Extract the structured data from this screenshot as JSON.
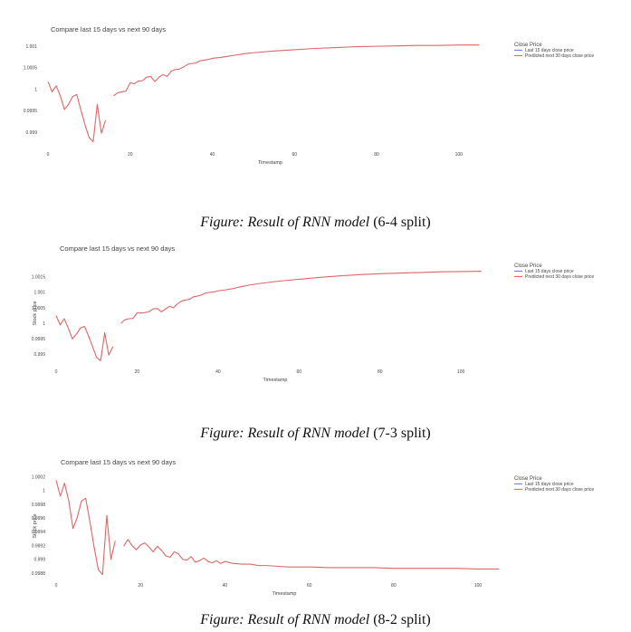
{
  "colors": {
    "line": "#e06666",
    "legend_last15": "#636efa",
    "legend_predicted": "#ef553b",
    "text": "#444444"
  },
  "figures": [
    {
      "caption": {
        "italic": "Figure: Result of RNN model",
        "plain": " (6-4 split)"
      },
      "chart_data": {
        "type": "line",
        "title": "Compare last 15 days vs next 90 days",
        "xlabel": "Timestamp",
        "ylabel": "",
        "xlim": [
          0,
          106
        ],
        "ylim": [
          0.99875,
          1.00115
        ],
        "xticks": [
          0,
          20,
          40,
          60,
          80,
          100
        ],
        "yticks": [
          {
            "value": 0.999,
            "label": "0.999"
          },
          {
            "value": 0.9995,
            "label": "0.9995"
          },
          {
            "value": 1.0,
            "label": "1"
          },
          {
            "value": 1.0005,
            "label": "1.0005"
          },
          {
            "value": 1.001,
            "label": "1.001"
          }
        ],
        "legend": {
          "title": "Close Price",
          "position": "right",
          "entries": [
            "Last 15 days close price",
            "Predicted next 30 days close price"
          ]
        },
        "grid": false,
        "series": [
          {
            "x": [
              0,
              1,
              2,
              3,
              4,
              5,
              6,
              7,
              8,
              9,
              10,
              11,
              12,
              13,
              14
            ],
            "values": [
              1.00018,
              0.99994,
              1.00008,
              0.99985,
              0.99953,
              0.99965,
              0.99983,
              0.99988,
              0.99952,
              0.99918,
              0.99888,
              0.99878,
              0.99965,
              0.99898,
              0.99928
            ]
          },
          {
            "x": [
              16,
              17,
              18,
              19,
              20,
              21,
              22,
              23,
              24,
              25,
              26,
              27,
              28,
              29,
              30,
              31,
              32,
              33,
              34,
              35,
              36,
              37,
              38,
              39,
              40,
              42,
              44,
              46,
              48,
              50,
              55,
              60,
              65,
              70,
              75,
              80,
              85,
              90,
              95,
              100,
              105
            ],
            "values": [
              0.99985,
              0.99992,
              0.99994,
              0.99996,
              1.00015,
              1.00013,
              1.00019,
              1.0002,
              1.00028,
              1.0003,
              1.00018,
              1.00028,
              1.00034,
              1.0003,
              1.00042,
              1.00046,
              1.00047,
              1.00052,
              1.00058,
              1.0006,
              1.00061,
              1.00066,
              1.00068,
              1.00069,
              1.00072,
              1.00074,
              1.00077,
              1.0008,
              1.00083,
              1.00085,
              1.00089,
              1.00092,
              1.00095,
              1.00097,
              1.00099,
              1.001,
              1.00101,
              1.00102,
              1.00102,
              1.00103,
              1.00103
            ]
          }
        ]
      }
    },
    {
      "caption": {
        "italic": "Figure: Result of RNN model",
        "plain": " (7-3 split)"
      },
      "chart_data": {
        "type": "line",
        "title": "Compare last 15 days vs next 90 days",
        "xlabel": "Timestamp",
        "ylabel": "Stock price",
        "xlim": [
          0,
          106
        ],
        "ylim": [
          0.99875,
          1.0019
        ],
        "xticks": [
          0,
          20,
          40,
          60,
          80,
          100
        ],
        "yticks": [
          {
            "value": 0.999,
            "label": "0.999"
          },
          {
            "value": 0.9995,
            "label": "0.9995"
          },
          {
            "value": 1.0,
            "label": "1"
          },
          {
            "value": 1.0005,
            "label": "1.0005"
          },
          {
            "value": 1.001,
            "label": "1.001"
          },
          {
            "value": 1.0015,
            "label": "1.0015"
          }
        ],
        "legend": {
          "title": "Close Price",
          "position": "right",
          "entries": [
            "Last 15 days close price",
            "Predicted next 30 days close price"
          ]
        },
        "grid": false,
        "series": [
          {
            "x": [
              0,
              1,
              2,
              3,
              4,
              5,
              6,
              7,
              8,
              9,
              10,
              11,
              12,
              13,
              14
            ],
            "values": [
              1.00025,
              0.99995,
              1.00015,
              0.99985,
              0.9995,
              0.99965,
              0.99985,
              0.9999,
              0.9996,
              0.99925,
              0.9989,
              0.9988,
              0.9997,
              0.99898,
              0.99925
            ]
          },
          {
            "x": [
              16,
              17,
              18,
              19,
              20,
              21,
              22,
              23,
              24,
              25,
              26,
              27,
              28,
              29,
              30,
              31,
              32,
              33,
              34,
              35,
              36,
              37,
              38,
              39,
              40,
              42,
              44,
              46,
              48,
              50,
              55,
              60,
              65,
              70,
              75,
              80,
              85,
              90,
              95,
              100,
              105
            ],
            "values": [
              1.0,
              1.00012,
              1.00015,
              1.00016,
              1.00034,
              1.00033,
              1.00035,
              1.00038,
              1.00047,
              1.00048,
              1.00037,
              1.00046,
              1.00055,
              1.0005,
              1.00063,
              1.00072,
              1.00075,
              1.00078,
              1.00086,
              1.00088,
              1.00092,
              1.00098,
              1.001,
              1.00101,
              1.00105,
              1.00108,
              1.00113,
              1.00119,
              1.00124,
              1.00128,
              1.00136,
              1.00142,
              1.00148,
              1.00153,
              1.00157,
              1.0016,
              1.00162,
              1.00164,
              1.00166,
              1.00167,
              1.00168
            ]
          }
        ]
      }
    },
    {
      "caption": {
        "italic": "Figure: Result of RNN model",
        "plain": " (8-2 split)"
      },
      "chart_data": {
        "type": "line",
        "title": "Compare last 15 days vs next 90 days",
        "xlabel": "Timestamp",
        "ylabel": "Stock price",
        "xlim": [
          0,
          106
        ],
        "ylim": [
          0.99876,
          1.00021
        ],
        "xticks": [
          0,
          20,
          40,
          60,
          80,
          100
        ],
        "yticks": [
          {
            "value": 0.9988,
            "label": "0.9988"
          },
          {
            "value": 0.999,
            "label": "0.999"
          },
          {
            "value": 0.9992,
            "label": "0.9992"
          },
          {
            "value": 0.9994,
            "label": "0.9994"
          },
          {
            "value": 0.9996,
            "label": "0.9996"
          },
          {
            "value": 0.9998,
            "label": "0.9998"
          },
          {
            "value": 1.0,
            "label": "1"
          },
          {
            "value": 1.0002,
            "label": "1.0002"
          }
        ],
        "legend": {
          "title": "Close Price",
          "position": "right",
          "entries": [
            "Last 15 days close price",
            "Predicted next 30 days close price"
          ]
        },
        "grid": false,
        "series": [
          {
            "x": [
              0,
              1,
              2,
              3,
              4,
              5,
              6,
              7,
              8,
              9,
              10,
              11,
              12,
              13,
              14
            ],
            "values": [
              1.00015,
              0.99992,
              1.00011,
              0.99985,
              0.99945,
              0.99961,
              0.99985,
              0.99989,
              0.99955,
              0.99918,
              0.99885,
              0.99878,
              0.99964,
              0.999,
              0.99927
            ]
          },
          {
            "x": [
              16,
              17,
              18,
              19,
              20,
              21,
              22,
              23,
              24,
              25,
              26,
              27,
              28,
              29,
              30,
              31,
              32,
              33,
              34,
              35,
              36,
              37,
              38,
              39,
              40,
              42,
              44,
              46,
              48,
              50,
              55,
              60,
              65,
              70,
              75,
              80,
              85,
              90,
              95,
              100,
              105
            ],
            "values": [
              0.99919,
              0.99929,
              0.9992,
              0.99914,
              0.99921,
              0.99924,
              0.99918,
              0.99911,
              0.99919,
              0.99913,
              0.99905,
              0.99903,
              0.99911,
              0.99908,
              0.999,
              0.99899,
              0.99904,
              0.99896,
              0.99898,
              0.99902,
              0.99897,
              0.99895,
              0.99898,
              0.99894,
              0.99897,
              0.99894,
              0.99893,
              0.99893,
              0.99891,
              0.99891,
              0.99889,
              0.99889,
              0.99888,
              0.99888,
              0.99888,
              0.99887,
              0.99887,
              0.99887,
              0.99887,
              0.99886,
              0.99886
            ]
          }
        ]
      }
    }
  ]
}
